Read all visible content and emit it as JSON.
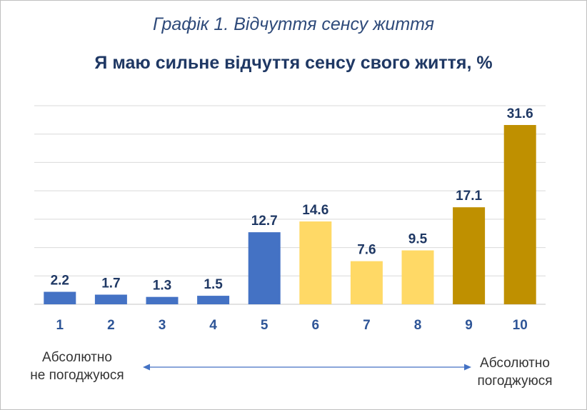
{
  "caption": "Графік 1. Відчуття сенсу життя",
  "chart_data": {
    "type": "bar",
    "title": "Я маю сильне відчуття сенсу свого життя, %",
    "categories": [
      "1",
      "2",
      "3",
      "4",
      "5",
      "6",
      "7",
      "8",
      "9",
      "10"
    ],
    "values": [
      2.2,
      1.7,
      1.3,
      1.5,
      12.7,
      14.6,
      7.6,
      9.5,
      17.1,
      31.6
    ],
    "bar_colors": [
      "#4472c4",
      "#4472c4",
      "#4472c4",
      "#4472c4",
      "#4472c4",
      "#ffd966",
      "#ffd966",
      "#ffd966",
      "#bf9000",
      "#bf9000"
    ],
    "ylim": [
      0,
      35
    ],
    "ygrid_step": 5,
    "grid": true,
    "xlabel": "",
    "ylabel": "",
    "data_label_color": "#1f3864",
    "tick_label_color": "#2e5597",
    "gridline_color": "#d9d9d9",
    "scale_labels": {
      "left": [
        "Абсолютно",
        "не погоджуюся"
      ],
      "right": [
        "Абсолютно",
        "погоджуюся"
      ]
    },
    "arrow_color": "#4472c4"
  }
}
